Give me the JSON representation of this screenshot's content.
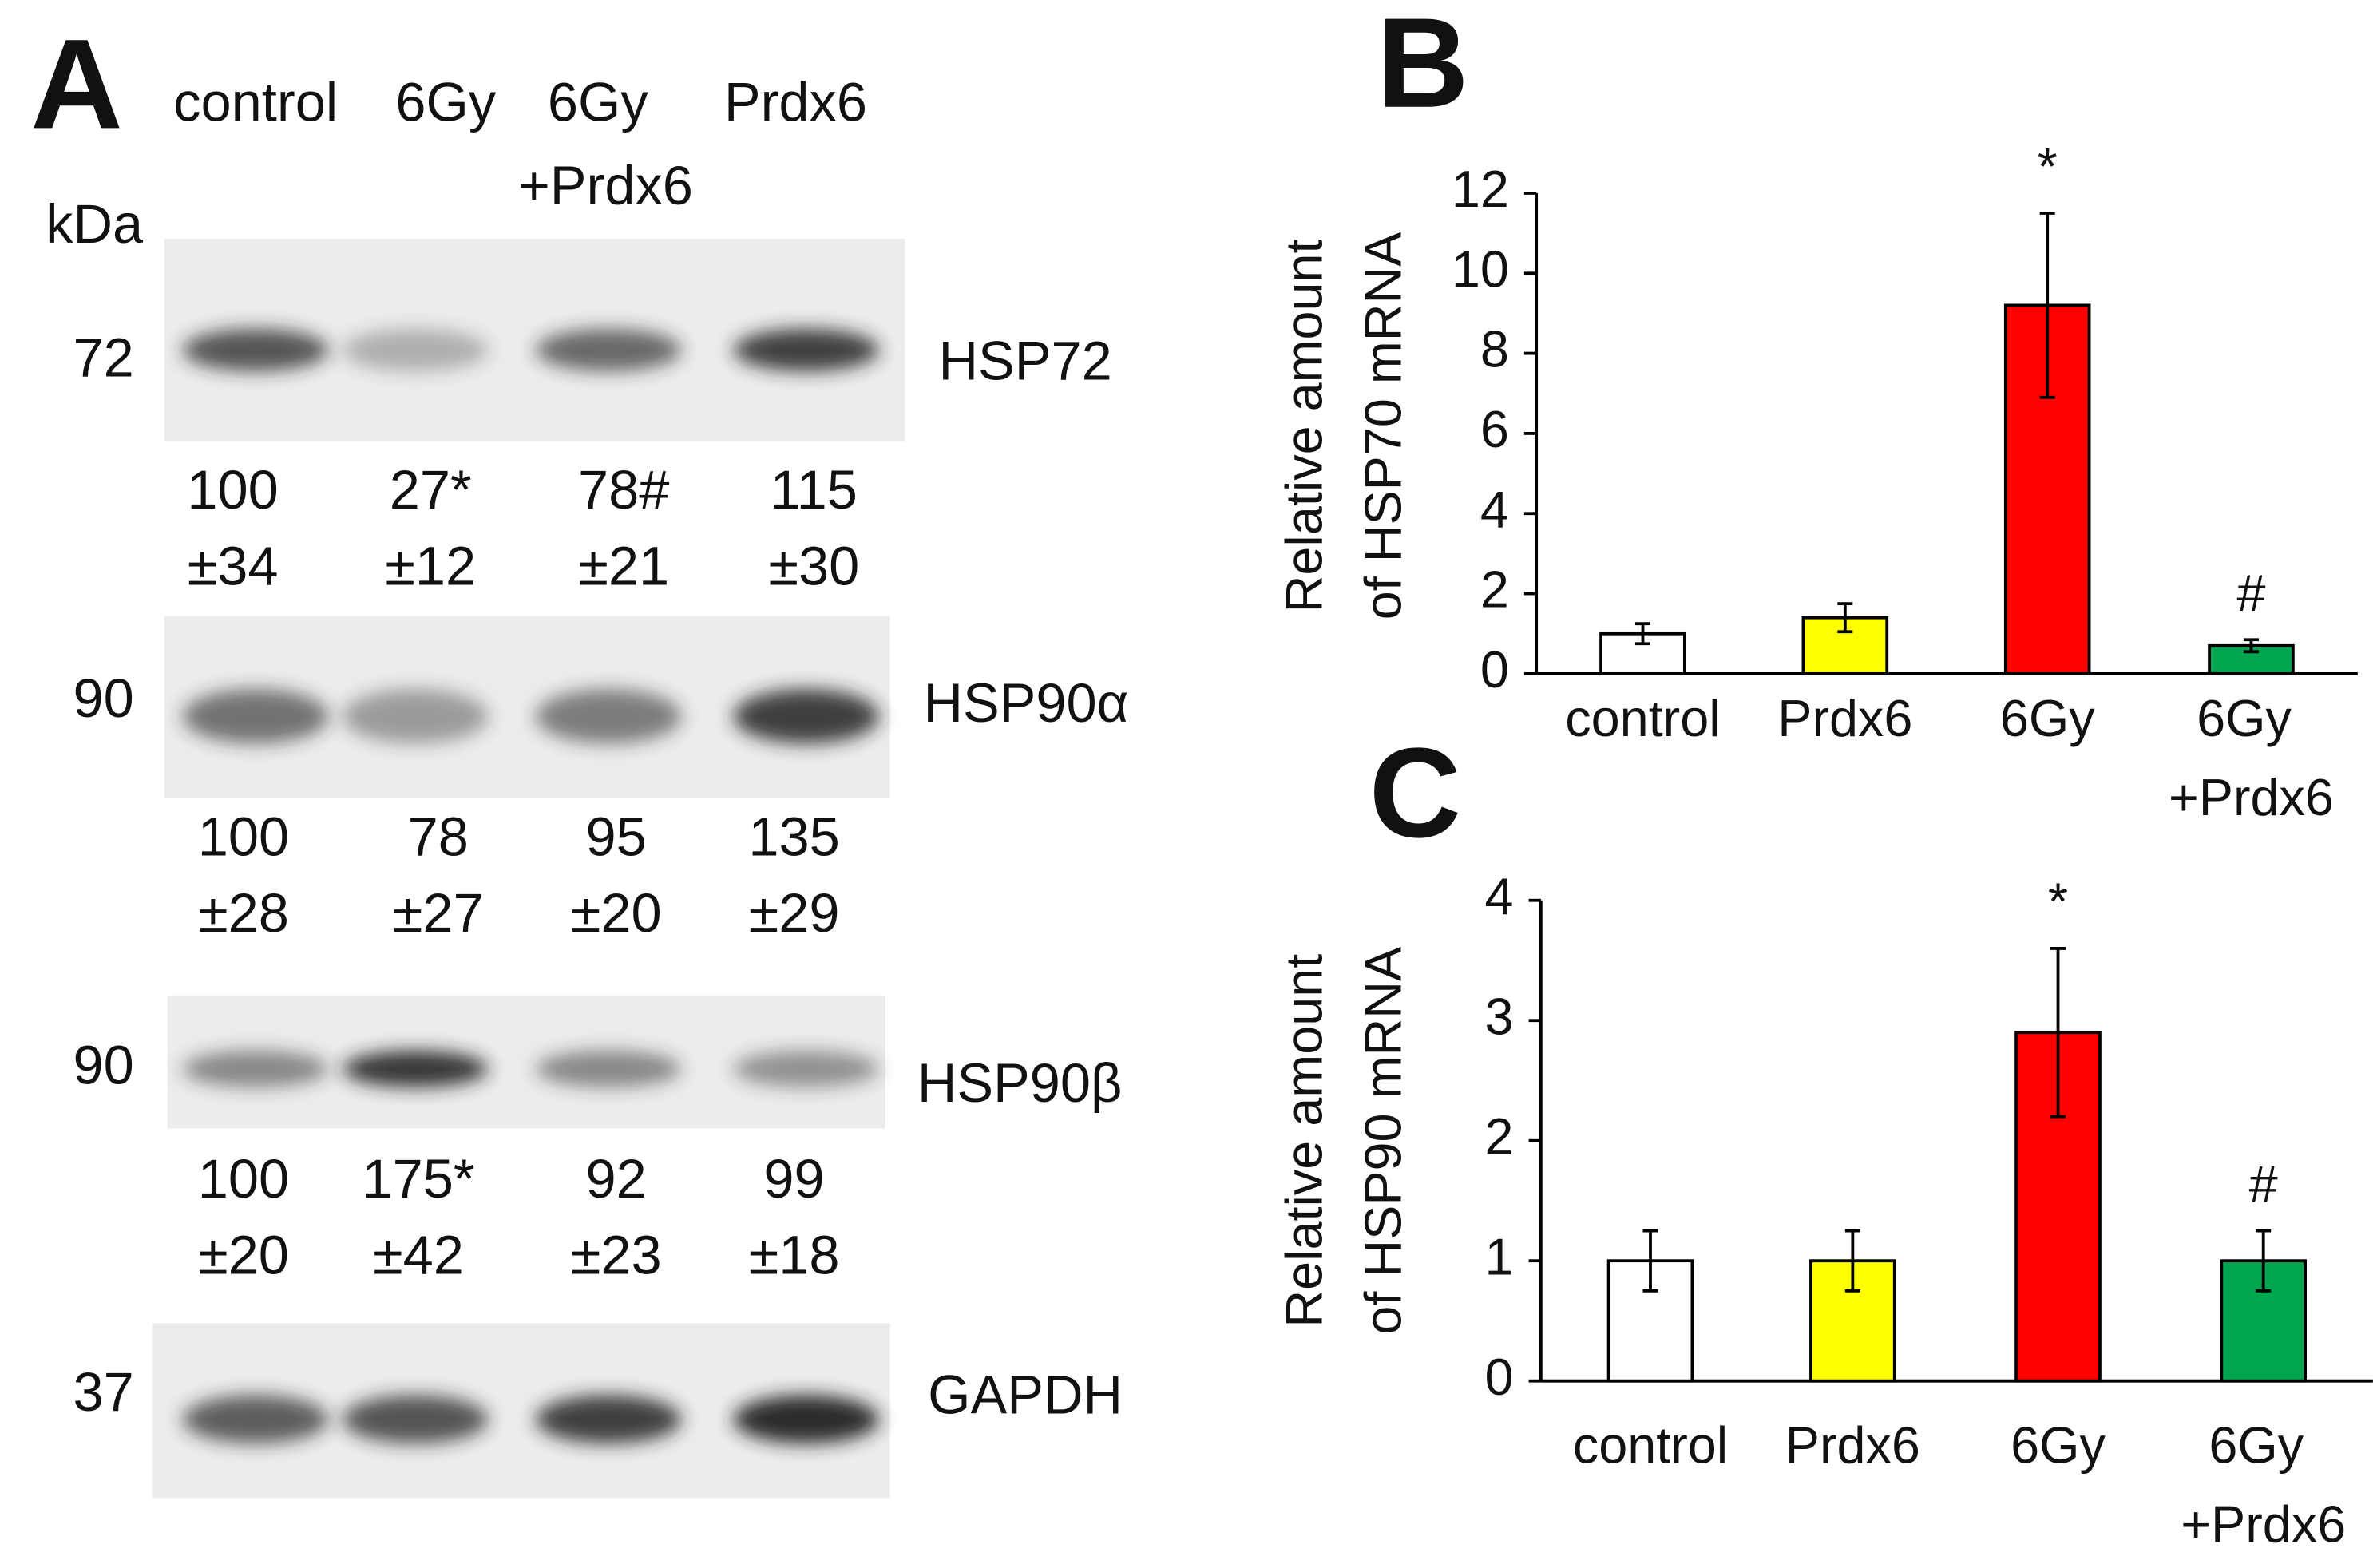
{
  "blot": {
    "label": "A",
    "kda_label": "kDa",
    "lanes": [
      "control",
      "6Gy",
      "6Gy +Prdx6",
      "Prdx6"
    ],
    "rows": [
      {
        "marker": "72",
        "protein": "HSP72",
        "quant": [
          "100",
          "27*",
          "78#",
          "115"
        ],
        "sd": [
          "±34",
          "±12",
          "±21",
          "±30"
        ]
      },
      {
        "marker": "90",
        "protein": "HSP90α",
        "quant": [
          "100",
          "78",
          "95",
          "135"
        ],
        "sd": [
          "±28",
          "±27",
          "±20",
          "±29"
        ]
      },
      {
        "marker": "90",
        "protein": "HSP90β",
        "quant": [
          "100",
          "175*",
          "92",
          "99"
        ],
        "sd": [
          "±20",
          "±42",
          "±23",
          "±18"
        ]
      },
      {
        "marker": "37",
        "protein": "GAPDH"
      }
    ]
  },
  "chart_data": [
    {
      "type": "bar",
      "panel_label": "B",
      "y_label": [
        "Relative amount",
        "of HSP70 mRNA"
      ],
      "categories": [
        "control",
        "Prdx6",
        "6Gy",
        "6Gy +Prdx6"
      ],
      "values": [
        1,
        1.4,
        9.2,
        0.7
      ],
      "errors": [
        0.25,
        0.35,
        2.3,
        0.15
      ],
      "colors": [
        "#ffffff",
        "#ffff00",
        "#ff0000",
        "#00a550"
      ],
      "annotations": [
        null,
        null,
        "*",
        "#"
      ],
      "ylim": [
        0,
        12
      ],
      "yticks": [
        0,
        2,
        4,
        6,
        8,
        10,
        12
      ]
    },
    {
      "type": "bar",
      "panel_label": "C",
      "y_label": [
        "Relative amount",
        "of HSP90 mRNA"
      ],
      "categories": [
        "control",
        "Prdx6",
        "6Gy",
        "6Gy +Prdx6"
      ],
      "values": [
        1,
        1,
        2.9,
        1
      ],
      "errors": [
        0.25,
        0.25,
        0.7,
        0.25
      ],
      "colors": [
        "#ffffff",
        "#ffff00",
        "#ff0000",
        "#00a550"
      ],
      "annotations": [
        null,
        null,
        "*",
        "#"
      ],
      "ylim": [
        0,
        4
      ],
      "yticks": [
        0,
        1,
        2,
        3,
        4
      ]
    }
  ]
}
